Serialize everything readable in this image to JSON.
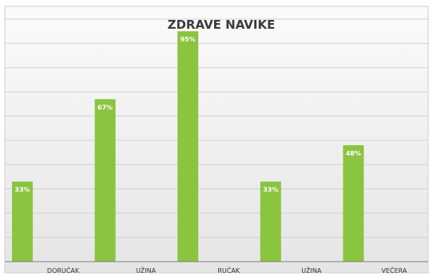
{
  "chart_data": {
    "type": "bar",
    "title": "ZDRAVE NAVIKE",
    "categories": [
      "DORUČAK",
      "UŽINA",
      "RUČAK",
      "UŽINA",
      "VEČERA"
    ],
    "values": [
      33,
      67,
      95,
      33,
      48
    ],
    "data_labels": [
      "33%",
      "67%",
      "95%",
      "33%",
      "48%"
    ],
    "ylim": [
      0,
      100
    ],
    "grid": true,
    "legend": "none",
    "xlabel": "",
    "ylabel": ""
  },
  "colors": {
    "bar": "#8bc43f",
    "bar_label": "#ffffff",
    "title": "#3b3b3b",
    "axis_label": "#333333",
    "gridline": "#d2d2d2",
    "plot_bg_light": "#fbfbfb",
    "plot_bg_dark": "#e5e5e5",
    "frame": "#cfcfcf",
    "baseline": "#7f7f7f"
  }
}
